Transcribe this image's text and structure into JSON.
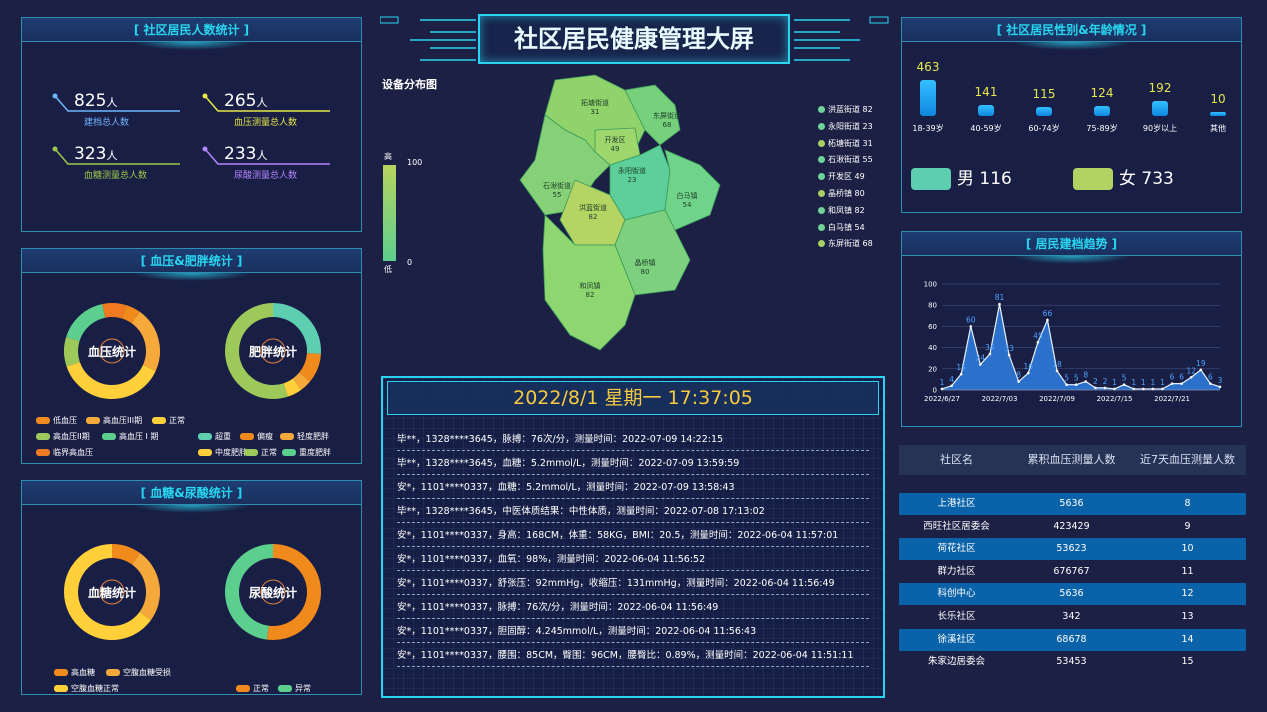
{
  "header": {
    "title": "社区居民健康管理大屏"
  },
  "panels": {
    "residents": "[ 社区居民人数统计 ]",
    "bp_obesity": "[ 血压&肥胖统计 ]",
    "sugar_uric": "[ 血糖&尿酸统计 ]",
    "gender_age": "[ 社区居民性别&年龄情况 ]",
    "trend": "[ 居民建档趋势 ]"
  },
  "stats": [
    {
      "value": "825",
      "unit": "人",
      "label": "建档总人数",
      "color": "#6fb6ff"
    },
    {
      "value": "265",
      "unit": "人",
      "label": "血压测量总人数",
      "color": "#e6e84a"
    },
    {
      "value": "323",
      "unit": "人",
      "label": "血糖测量总人数",
      "color": "#9ac94a"
    },
    {
      "value": "233",
      "unit": "人",
      "label": "尿酸测量总人数",
      "color": "#b385ff"
    }
  ],
  "donuts": {
    "bp": {
      "label": "血压统计"
    },
    "obesity": {
      "label": "肥胖统计"
    },
    "sugar": {
      "label": "血糖统计"
    },
    "uric": {
      "label": "尿酸统计"
    }
  },
  "bp_legend": [
    {
      "text": "低血压",
      "color": "#f08a1c"
    },
    {
      "text": "高血压III期",
      "color": "#f5a93a"
    },
    {
      "text": "正常",
      "color": "#ffd03a"
    },
    {
      "text": "高血压II期",
      "color": "#9cc95a"
    },
    {
      "text": "高血压 I 期",
      "color": "#5ccf8e"
    },
    {
      "text": "临界高血压",
      "color": "#f07a22"
    }
  ],
  "obesity_legend": [
    {
      "text": "超重",
      "color": "#5dcfb0"
    },
    {
      "text": "偏瘦",
      "color": "#f08a1c"
    },
    {
      "text": "轻度肥胖",
      "color": "#f5a93a"
    },
    {
      "text": "中度肥胖",
      "color": "#ffd03a"
    },
    {
      "text": "正常",
      "color": "#9cc95a"
    },
    {
      "text": "重度肥胖",
      "color": "#5ccf8e"
    }
  ],
  "sugar_legend": [
    {
      "text": "高血糖",
      "color": "#f08a1c"
    },
    {
      "text": "空腹血糖受损",
      "color": "#f5a93a"
    },
    {
      "text": "空腹血糖正常",
      "color": "#ffd03a"
    }
  ],
  "uric_legend": [
    {
      "text": "正常",
      "color": "#f08a1c"
    },
    {
      "text": "异常",
      "color": "#5ccf8e"
    }
  ],
  "map": {
    "title": "设备分布图",
    "scale_high": "高",
    "scale_low": "低",
    "scale_max": "100",
    "scale_min": "0",
    "regions": [
      {
        "name": "拓塘街道",
        "value": "31"
      },
      {
        "name": "东屏街道",
        "value": "68"
      },
      {
        "name": "开发区",
        "value": "49"
      },
      {
        "name": "永阳街道",
        "value": "23"
      },
      {
        "name": "石湫街道",
        "value": "55"
      },
      {
        "name": "洪蓝街道",
        "value": "82"
      },
      {
        "name": "白马镇",
        "value": "54"
      },
      {
        "name": "晶桥镇",
        "value": "80"
      },
      {
        "name": "和凤镇",
        "value": "82"
      }
    ],
    "legend": [
      {
        "text": "洪蓝街道 82",
        "color": "#6fd39a"
      },
      {
        "text": "永阳街道 23",
        "color": "#6fd39a"
      },
      {
        "text": "柘塘街道 31",
        "color": "#a8cf62"
      },
      {
        "text": "石湫街道 55",
        "color": "#6fd39a"
      },
      {
        "text": "开发区 49",
        "color": "#6fd39a"
      },
      {
        "text": "晶桥镇 80",
        "color": "#a8cf62"
      },
      {
        "text": "和凤镇 82",
        "color": "#6fd39a"
      },
      {
        "text": "白马镇 54",
        "color": "#6fd39a"
      },
      {
        "text": "东屏街道 68",
        "color": "#a8cf62"
      }
    ]
  },
  "feed": {
    "datetime": "2022/8/1 星期一 17:37:05",
    "rows": [
      "毕**，1328****3645，脉搏：76次/分，测量时间：2022-07-09 14:22:15",
      "毕**，1328****3645，血糖：5.2mmol/L，测量时间：2022-07-09 13:59:59",
      "安*，1101****0337，血糖：5.2mmol/L，测量时间：2022-07-09 13:58:43",
      "毕**，1328****3645，中医体质结果：中性体质，测量时间：2022-07-08 17:13:02",
      "安*，1101****0337，身高：168CM，体重：58KG，BMI：20.5，测量时间：2022-06-04 11:57:01",
      "安*，1101****0337，血氧：98%，测量时间：2022-06-04 11:56:52",
      "安*，1101****0337，舒张压：92mmHg，收缩压：131mmHg，测量时间：2022-06-04 11:56:49",
      "安*，1101****0337，脉搏：76次/分，测量时间：2022-06-04 11:56:49",
      "安*，1101****0337，胆固醇：4.245mmol/L，测量时间：2022-06-04 11:56:43",
      "安*，1101****0337，腰围：85CM，臀围：96CM，腰臀比：0.89%，测量时间：2022-06-04 11:51:11"
    ]
  },
  "age": [
    {
      "label": "18-39岁",
      "value": 463
    },
    {
      "label": "40-59岁",
      "value": 141
    },
    {
      "label": "60-74岁",
      "value": 115
    },
    {
      "label": "75-89岁",
      "value": 124
    },
    {
      "label": "90岁以上",
      "value": 192
    },
    {
      "label": "其他",
      "value": 10
    }
  ],
  "gender": {
    "male": {
      "label": "男 116",
      "color": "#5dcfb0"
    },
    "female": {
      "label": "女 733",
      "color": "#b2d264"
    }
  },
  "chart_data": [
    {
      "type": "area",
      "title": "[ 居民建档趋势 ]",
      "ylim": [
        0,
        100
      ],
      "yticks": [
        "0",
        "20",
        "40",
        "60",
        "80",
        "100"
      ],
      "xticks": [
        "2022/6/27",
        "2022/7/03",
        "2022/7/09",
        "2022/7/15",
        "2022/7/21"
      ],
      "values": [
        1,
        4,
        15,
        60,
        24,
        34,
        81,
        33,
        8,
        16,
        45,
        66,
        18,
        5,
        5,
        8,
        2,
        2,
        1,
        5,
        1,
        1,
        1,
        1,
        6,
        6,
        12,
        19,
        6,
        3
      ]
    },
    {
      "type": "pie",
      "title": "血压统计",
      "labels": [
        "低血压",
        "高血压III期",
        "正常",
        "高血压II期",
        "高血压 I 期",
        "临界高血压"
      ],
      "values": [
        5,
        22,
        38,
        10,
        17,
        8
      ]
    },
    {
      "type": "pie",
      "title": "肥胖统计",
      "labels": [
        "超重",
        "偏瘦",
        "轻度肥胖",
        "中度肥胖",
        "正常",
        "重度肥胖"
      ],
      "values": [
        26,
        10,
        4,
        5,
        55,
        0
      ]
    },
    {
      "type": "pie",
      "title": "血糖统计",
      "labels": [
        "高血糖",
        "空腹血糖受损",
        "空腹血糖正常"
      ],
      "values": [
        10,
        25,
        65
      ]
    },
    {
      "type": "pie",
      "title": "尿酸统计",
      "labels": [
        "正常",
        "异常"
      ],
      "values": [
        52,
        48
      ]
    },
    {
      "type": "bar",
      "title": "[ 社区居民性别&年龄情况 ]",
      "categories": [
        "18-39岁",
        "40-59岁",
        "60-74岁",
        "75-89岁",
        "90岁以上",
        "其他"
      ],
      "values": [
        463,
        141,
        115,
        124,
        192,
        10
      ]
    }
  ],
  "table": {
    "headers": [
      "社区名",
      "累积血压测量人数",
      "近7天血压测量人数"
    ],
    "rows": [
      [
        "上港社区",
        "5636",
        "8"
      ],
      [
        "西旺社区居委会",
        "423429",
        "9"
      ],
      [
        "荷花社区",
        "53623",
        "10"
      ],
      [
        "群力社区",
        "676767",
        "11"
      ],
      [
        "科创中心",
        "5636",
        "12"
      ],
      [
        "长乐社区",
        "342",
        "13"
      ],
      [
        "徐溪社区",
        "68678",
        "14"
      ],
      [
        "朱家边居委会",
        "53453",
        "15"
      ]
    ]
  }
}
